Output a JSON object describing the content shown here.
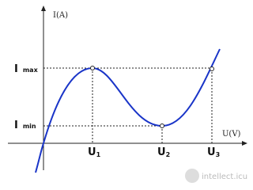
{
  "axes": {
    "y_label": "I(A)",
    "x_label": "U(V)"
  },
  "current_labels": [
    {
      "main": "I",
      "sub": "max"
    },
    {
      "main": "I",
      "sub": "min"
    }
  ],
  "voltage_labels": [
    {
      "main": "U",
      "sub": "1"
    },
    {
      "main": "U",
      "sub": "2"
    },
    {
      "main": "U",
      "sub": "3"
    }
  ],
  "watermark": "intellect.icu"
}
